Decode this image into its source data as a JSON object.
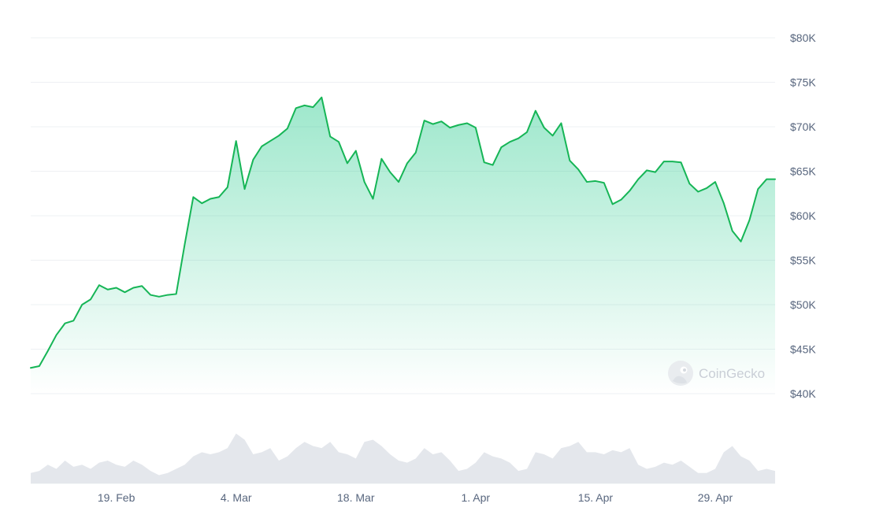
{
  "chart_data": {
    "type": "area",
    "ylim": [
      40000,
      80000
    ],
    "y_ticks": [
      {
        "value": 80000,
        "label": "$80K"
      },
      {
        "value": 75000,
        "label": "$75K"
      },
      {
        "value": 70000,
        "label": "$70K"
      },
      {
        "value": 65000,
        "label": "$65K"
      },
      {
        "value": 60000,
        "label": "$60K"
      },
      {
        "value": 55000,
        "label": "$55K"
      },
      {
        "value": 50000,
        "label": "$50K"
      },
      {
        "value": 45000,
        "label": "$45K"
      },
      {
        "value": 40000,
        "label": "$40K"
      }
    ],
    "x_range": [
      "2024-02-09",
      "2024-05-06"
    ],
    "x_ticks": [
      {
        "date": "2024-02-19",
        "label": "19. Feb"
      },
      {
        "date": "2024-03-04",
        "label": "4. Mar"
      },
      {
        "date": "2024-03-18",
        "label": "18. Mar"
      },
      {
        "date": "2024-04-01",
        "label": "1. Apr"
      },
      {
        "date": "2024-04-15",
        "label": "15. Apr"
      },
      {
        "date": "2024-04-29",
        "label": "29. Apr"
      }
    ],
    "grid": true,
    "colors": {
      "line": "#16b556",
      "fill": "#16c784",
      "grid": "#eef0f3",
      "volume": "#e4e7ec"
    },
    "series": [
      {
        "x": [
          "2024-02-09",
          "2024-02-10",
          "2024-02-11",
          "2024-02-12",
          "2024-02-13",
          "2024-02-14",
          "2024-02-15",
          "2024-02-16",
          "2024-02-17",
          "2024-02-18",
          "2024-02-19",
          "2024-02-20",
          "2024-02-21",
          "2024-02-22",
          "2024-02-23",
          "2024-02-24",
          "2024-02-25",
          "2024-02-26",
          "2024-02-27",
          "2024-02-28",
          "2024-02-29",
          "2024-03-01",
          "2024-03-02",
          "2024-03-03",
          "2024-03-04",
          "2024-03-05",
          "2024-03-06",
          "2024-03-07",
          "2024-03-08",
          "2024-03-09",
          "2024-03-10",
          "2024-03-11",
          "2024-03-12",
          "2024-03-13",
          "2024-03-14",
          "2024-03-15",
          "2024-03-16",
          "2024-03-17",
          "2024-03-18",
          "2024-03-19",
          "2024-03-20",
          "2024-03-21",
          "2024-03-22",
          "2024-03-23",
          "2024-03-24",
          "2024-03-25",
          "2024-03-26",
          "2024-03-27",
          "2024-03-28",
          "2024-03-29",
          "2024-03-30",
          "2024-03-31",
          "2024-04-01",
          "2024-04-02",
          "2024-04-03",
          "2024-04-04",
          "2024-04-05",
          "2024-04-06",
          "2024-04-07",
          "2024-04-08",
          "2024-04-09",
          "2024-04-10",
          "2024-04-11",
          "2024-04-12",
          "2024-04-13",
          "2024-04-14",
          "2024-04-15",
          "2024-04-16",
          "2024-04-17",
          "2024-04-18",
          "2024-04-19",
          "2024-04-20",
          "2024-04-21",
          "2024-04-22",
          "2024-04-23",
          "2024-04-24",
          "2024-04-25",
          "2024-04-26",
          "2024-04-27",
          "2024-04-28",
          "2024-04-29",
          "2024-04-30",
          "2024-05-01",
          "2024-05-02",
          "2024-05-03",
          "2024-05-04",
          "2024-05-05",
          "2024-05-06"
        ],
        "values": [
          42900,
          43100,
          44800,
          46600,
          47900,
          48200,
          50000,
          50600,
          52200,
          51700,
          51900,
          51400,
          51900,
          52100,
          51100,
          50900,
          51100,
          51200,
          56800,
          62100,
          61400,
          61900,
          62100,
          63200,
          68400,
          63000,
          66300,
          67800,
          68400,
          69000,
          69800,
          72100,
          72400,
          72200,
          73300,
          68900,
          68300,
          65900,
          67300,
          63800,
          61900,
          66400,
          64900,
          63800,
          65900,
          67100,
          70700,
          70300,
          70600,
          69900,
          70200,
          70400,
          69900,
          66000,
          65700,
          67700,
          68300,
          68700,
          69400,
          71800,
          69900,
          69000,
          70400,
          66200,
          65200,
          63800,
          63900,
          63700,
          61300,
          61800,
          62800,
          64100,
          65100,
          64900,
          66100,
          66100,
          66000,
          63600,
          62700,
          63100,
          63800,
          61400,
          58300,
          57100,
          59500,
          63000,
          64100,
          64100
        ]
      }
    ],
    "volume": [
      0.1,
      0.12,
      0.18,
      0.14,
      0.22,
      0.16,
      0.18,
      0.14,
      0.2,
      0.22,
      0.18,
      0.16,
      0.22,
      0.18,
      0.12,
      0.08,
      0.1,
      0.14,
      0.18,
      0.26,
      0.3,
      0.28,
      0.3,
      0.34,
      0.48,
      0.42,
      0.28,
      0.3,
      0.34,
      0.22,
      0.26,
      0.34,
      0.4,
      0.36,
      0.34,
      0.4,
      0.3,
      0.28,
      0.24,
      0.4,
      0.42,
      0.36,
      0.28,
      0.22,
      0.2,
      0.24,
      0.34,
      0.28,
      0.3,
      0.22,
      0.12,
      0.14,
      0.2,
      0.3,
      0.26,
      0.24,
      0.2,
      0.12,
      0.14,
      0.3,
      0.28,
      0.24,
      0.34,
      0.36,
      0.4,
      0.3,
      0.3,
      0.28,
      0.32,
      0.3,
      0.34,
      0.18,
      0.14,
      0.16,
      0.2,
      0.18,
      0.22,
      0.16,
      0.1,
      0.1,
      0.14,
      0.3,
      0.36,
      0.26,
      0.22,
      0.12,
      0.14,
      0.12
    ],
    "watermark": "CoinGecko"
  }
}
